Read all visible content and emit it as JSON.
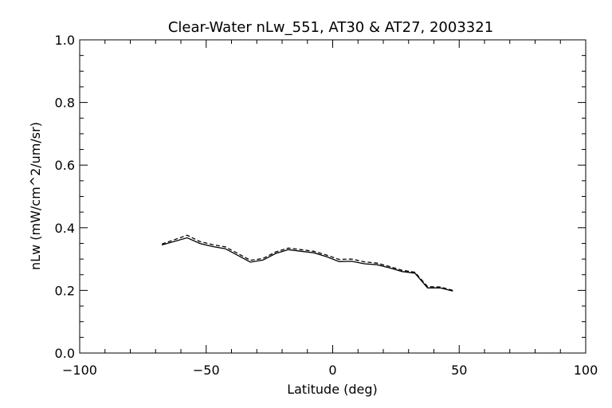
{
  "chart_data": {
    "type": "line",
    "title": "Clear-Water nLw_551, AT30 & AT27, 2003321",
    "xlabel": "Latitude (deg)",
    "ylabel": "nLw (mW/cm^2/um/sr)",
    "xlim": [
      -100,
      100
    ],
    "ylim": [
      0.0,
      1.0
    ],
    "x_ticks": [
      -100,
      -50,
      0,
      50,
      100
    ],
    "x_tick_labels": [
      "−100",
      "−50",
      "0",
      "50",
      "100"
    ],
    "y_ticks": [
      0.0,
      0.2,
      0.4,
      0.6,
      0.8,
      1.0
    ],
    "y_tick_labels": [
      "0.0",
      "0.2",
      "0.4",
      "0.6",
      "0.8",
      "1.0"
    ],
    "grid": false,
    "legend": "none",
    "series": [
      {
        "style": "solid",
        "color": "#000000",
        "x": [
          -67.5,
          -57.5,
          -52.5,
          -47.5,
          -42.5,
          -37.5,
          -32.5,
          -27.5,
          -22.5,
          -17.5,
          -12.5,
          -7.5,
          -2.5,
          2.5,
          7.5,
          12.5,
          17.5,
          22.5,
          27.5,
          32.5,
          37.5,
          42.5,
          47.5
        ],
        "y": [
          0.345,
          0.368,
          0.35,
          0.34,
          0.333,
          0.312,
          0.29,
          0.297,
          0.318,
          0.33,
          0.325,
          0.32,
          0.308,
          0.292,
          0.293,
          0.285,
          0.282,
          0.272,
          0.26,
          0.255,
          0.208,
          0.208,
          0.198
        ]
      },
      {
        "style": "dashed",
        "color": "#000000",
        "x": [
          -67.5,
          -57.5,
          -52.5,
          -47.5,
          -42.5,
          -37.5,
          -32.5,
          -27.5,
          -22.5,
          -17.5,
          -12.5,
          -7.5,
          -2.5,
          2.5,
          7.5,
          12.5,
          17.5,
          22.5,
          27.5,
          32.5,
          37.5,
          42.5,
          47.5
        ],
        "y": [
          0.348,
          0.376,
          0.356,
          0.346,
          0.339,
          0.318,
          0.296,
          0.302,
          0.323,
          0.335,
          0.33,
          0.325,
          0.313,
          0.299,
          0.3,
          0.291,
          0.287,
          0.276,
          0.264,
          0.258,
          0.212,
          0.211,
          0.2
        ]
      }
    ]
  }
}
